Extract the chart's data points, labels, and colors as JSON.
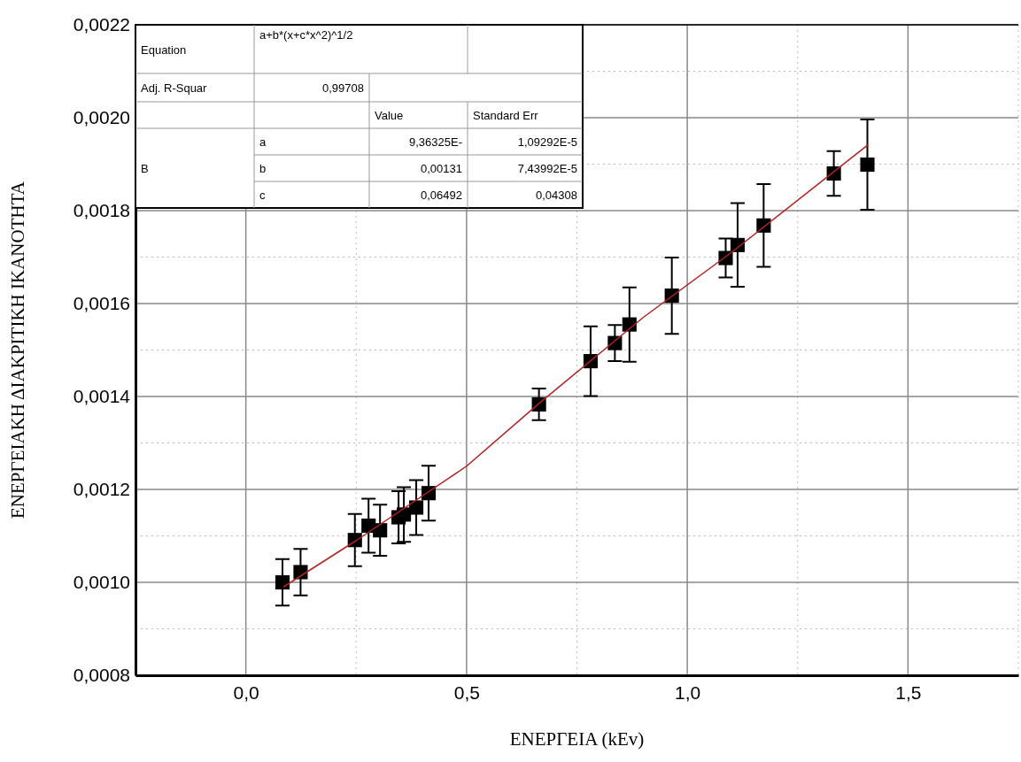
{
  "chart_data": {
    "type": "scatter",
    "xlabel": "ΕΝΕΡΓΕΙΑ (kEv)",
    "ylabel": "ΕΝΕΡΓΕΙΑΚΗ ΔΙΑΚΡΙΤΙΚΗ ΙΚΑΝΟΤΗΤΑ",
    "xlim": [
      -0.25,
      1.75
    ],
    "xticks": [
      {
        "value": -0.25,
        "label": null
      },
      {
        "value": 0,
        "label": "0,0"
      },
      {
        "value": 0.25,
        "label": null
      },
      {
        "value": 0.5,
        "label": "0,5"
      },
      {
        "value": 0.75,
        "label": null
      },
      {
        "value": 1,
        "label": "1,0"
      },
      {
        "value": 1.25,
        "label": null
      },
      {
        "value": 1.5,
        "label": "1,5"
      },
      {
        "value": 1.75,
        "label": null
      }
    ],
    "ylim": [
      0.0008,
      0.0022
    ],
    "yticks": [
      {
        "value": 0.0008,
        "label": "0,0008"
      },
      {
        "value": 0.0009,
        "label": null
      },
      {
        "value": 0.001,
        "label": "0,0010"
      },
      {
        "value": 0.0011,
        "label": null
      },
      {
        "value": 0.0012,
        "label": "0,0012"
      },
      {
        "value": 0.0013,
        "label": null
      },
      {
        "value": 0.0014,
        "label": "0,0014"
      },
      {
        "value": 0.0015,
        "label": null
      },
      {
        "value": 0.0016,
        "label": "0,0016"
      },
      {
        "value": 0.0017,
        "label": null
      },
      {
        "value": 0.0018,
        "label": "0,0018"
      },
      {
        "value": 0.0019,
        "label": null
      },
      {
        "value": 0.002,
        "label": "0,0020"
      },
      {
        "value": 0.0021,
        "label": null
      },
      {
        "value": 0.0022,
        "label": "0,0022"
      }
    ],
    "grid": true,
    "series": [
      {
        "color": "#000000",
        "marker": "square",
        "x": [
          0.083,
          0.124,
          0.247,
          0.278,
          0.304,
          0.346,
          0.358,
          0.386,
          0.414,
          0.664,
          0.781,
          0.836,
          0.869,
          0.965,
          1.087,
          1.114,
          1.173,
          1.332,
          1.408
        ],
        "values": [
          0.001,
          0.001022,
          0.001091,
          0.001122,
          0.001112,
          0.00114,
          0.001146,
          0.001161,
          0.001192,
          0.001383,
          0.001476,
          0.001515,
          0.001555,
          0.001617,
          0.001698,
          0.001726,
          0.001768,
          0.00188,
          0.001899
        ],
        "errors": [
          5e-05,
          5e-05,
          5.6e-05,
          5.8e-05,
          5.5e-05,
          5.6e-05,
          5.9e-05,
          5.9e-05,
          5.9e-05,
          3.4e-05,
          7.5e-05,
          3.9e-05,
          8e-05,
          8.2e-05,
          4.2e-05,
          9e-05,
          8.9e-05,
          4.8e-05,
          9.7e-05
        ]
      },
      {
        "type": "line",
        "color": "#b22222",
        "marker": "none",
        "line_style": "solid",
        "x": [
          0.085,
          0.25,
          0.5,
          0.664,
          0.9,
          1.1,
          1.41
        ],
        "values": [
          0.00099,
          0.00109,
          0.00125,
          0.001385,
          0.00157,
          0.00171,
          0.001942
        ]
      }
    ],
    "annotations": [
      "Equation",
      "a+b*(x+c*x^2)^1/2",
      "Adj. R-Squar",
      "0,99708",
      "Value",
      "Standard Err",
      "B",
      "a",
      "9,36325E-",
      "1,09292E-5",
      "b",
      "0,00131",
      "7,43992E-5",
      "c",
      "0,06492",
      "0,04308"
    ]
  }
}
